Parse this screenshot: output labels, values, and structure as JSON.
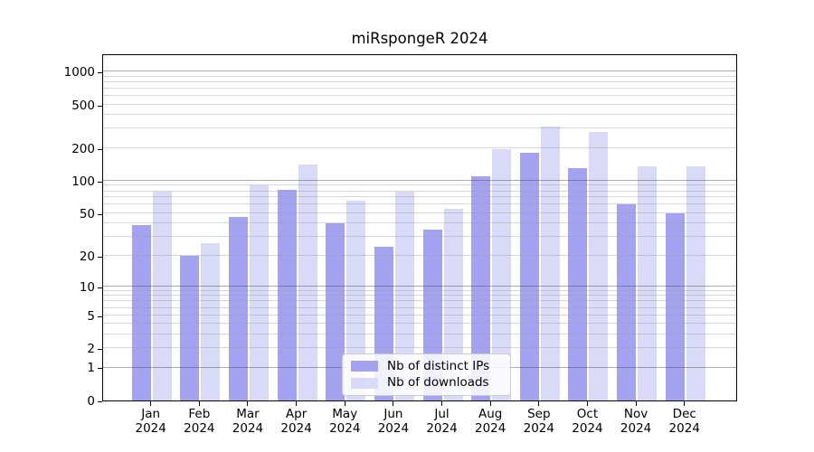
{
  "chart_data": {
    "type": "bar",
    "title": "miRspongeR 2024",
    "categories": [
      "Jan",
      "Feb",
      "Mar",
      "Apr",
      "May",
      "Jun",
      "Jul",
      "Aug",
      "Sep",
      "Oct",
      "Nov",
      "Dec"
    ],
    "x_tick_second_line": "2024",
    "series": [
      {
        "name": "Nb of distinct IPs",
        "color": "#a3a3f1",
        "values": [
          39,
          20,
          46,
          82,
          40,
          24,
          35,
          110,
          180,
          130,
          60,
          50
        ]
      },
      {
        "name": "Nb of downloads",
        "color": "#d9d9f8",
        "values": [
          80,
          26,
          90,
          140,
          65,
          80,
          55,
          195,
          315,
          280,
          135,
          135
        ]
      }
    ],
    "y_scale": "log1p",
    "ylim": [
      0,
      1465
    ],
    "y_tick_values": [
      1000,
      500,
      200,
      100,
      50,
      20,
      10,
      5,
      2,
      1,
      0
    ],
    "y_tick_labels": [
      "1000",
      "500",
      "200",
      "100",
      "50",
      "20",
      "10",
      "5",
      "2",
      "1",
      "0"
    ],
    "y_major_gridline_values": [
      1,
      10,
      100,
      1000
    ],
    "y_minor_gridline_values": [
      2,
      3,
      4,
      5,
      6,
      7,
      8,
      9,
      20,
      30,
      40,
      50,
      60,
      70,
      80,
      90,
      200,
      300,
      400,
      500,
      600,
      700,
      800,
      900
    ],
    "grid": "horizontal",
    "legend_position": "lower center",
    "colors": {
      "background": "#ffffff",
      "axis": "#000000",
      "major_grid": "#b0b0b0",
      "minor_grid": "#d9d9d9",
      "legend_border": "#cccccc"
    }
  }
}
